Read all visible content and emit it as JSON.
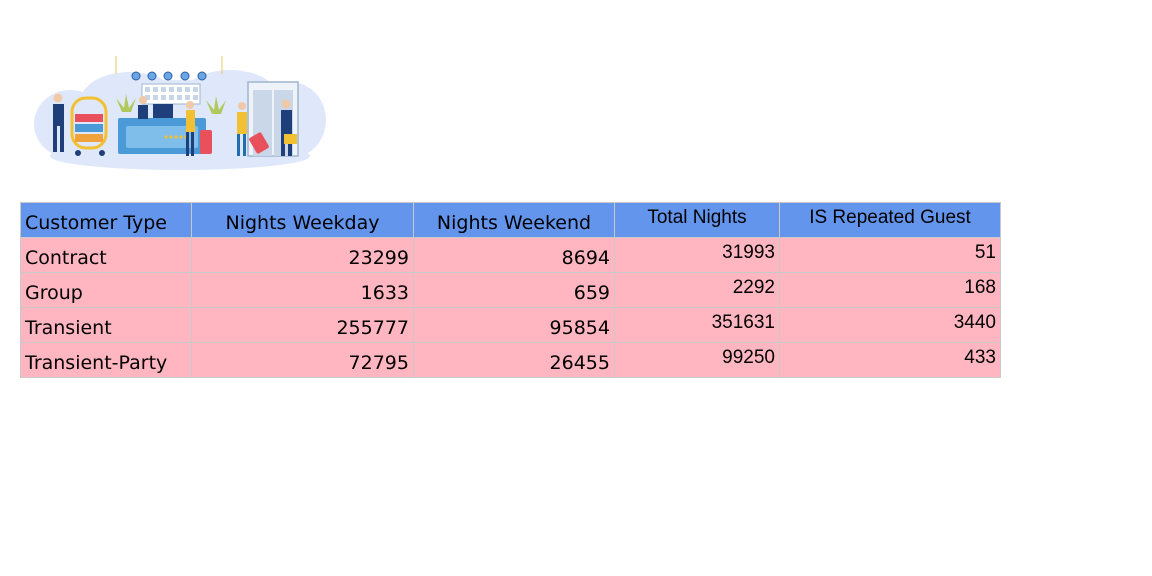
{
  "illustration": {
    "name": "hotel-reception-illustration",
    "colors": {
      "cloud": "#dfe8fa",
      "desk": "#4a9ad8",
      "cart": "#f2c033",
      "suitcase_red": "#e8505b",
      "staff_uniform": "#1f3f7a",
      "door": "#b9c9dc"
    }
  },
  "table": {
    "header_color": "#6495ed",
    "row_color": "#ffb6c1",
    "columns": [
      "Customer Type",
      "Nights Weekday",
      "Nights Weekend",
      "Total Nights",
      "IS Repeated Guest"
    ],
    "rows": [
      {
        "customer_type": "Contract",
        "nights_weekday": "23299",
        "nights_weekend": "8694",
        "total_nights": "31993",
        "is_repeated_guest": "51"
      },
      {
        "customer_type": "Group",
        "nights_weekday": "1633",
        "nights_weekend": "659",
        "total_nights": "2292",
        "is_repeated_guest": "168"
      },
      {
        "customer_type": "Transient",
        "nights_weekday": "255777",
        "nights_weekend": "95854",
        "total_nights": "351631",
        "is_repeated_guest": "3440"
      },
      {
        "customer_type": "Transient-Party",
        "nights_weekday": "72795",
        "nights_weekend": "26455",
        "total_nights": "99250",
        "is_repeated_guest": "433"
      }
    ]
  }
}
